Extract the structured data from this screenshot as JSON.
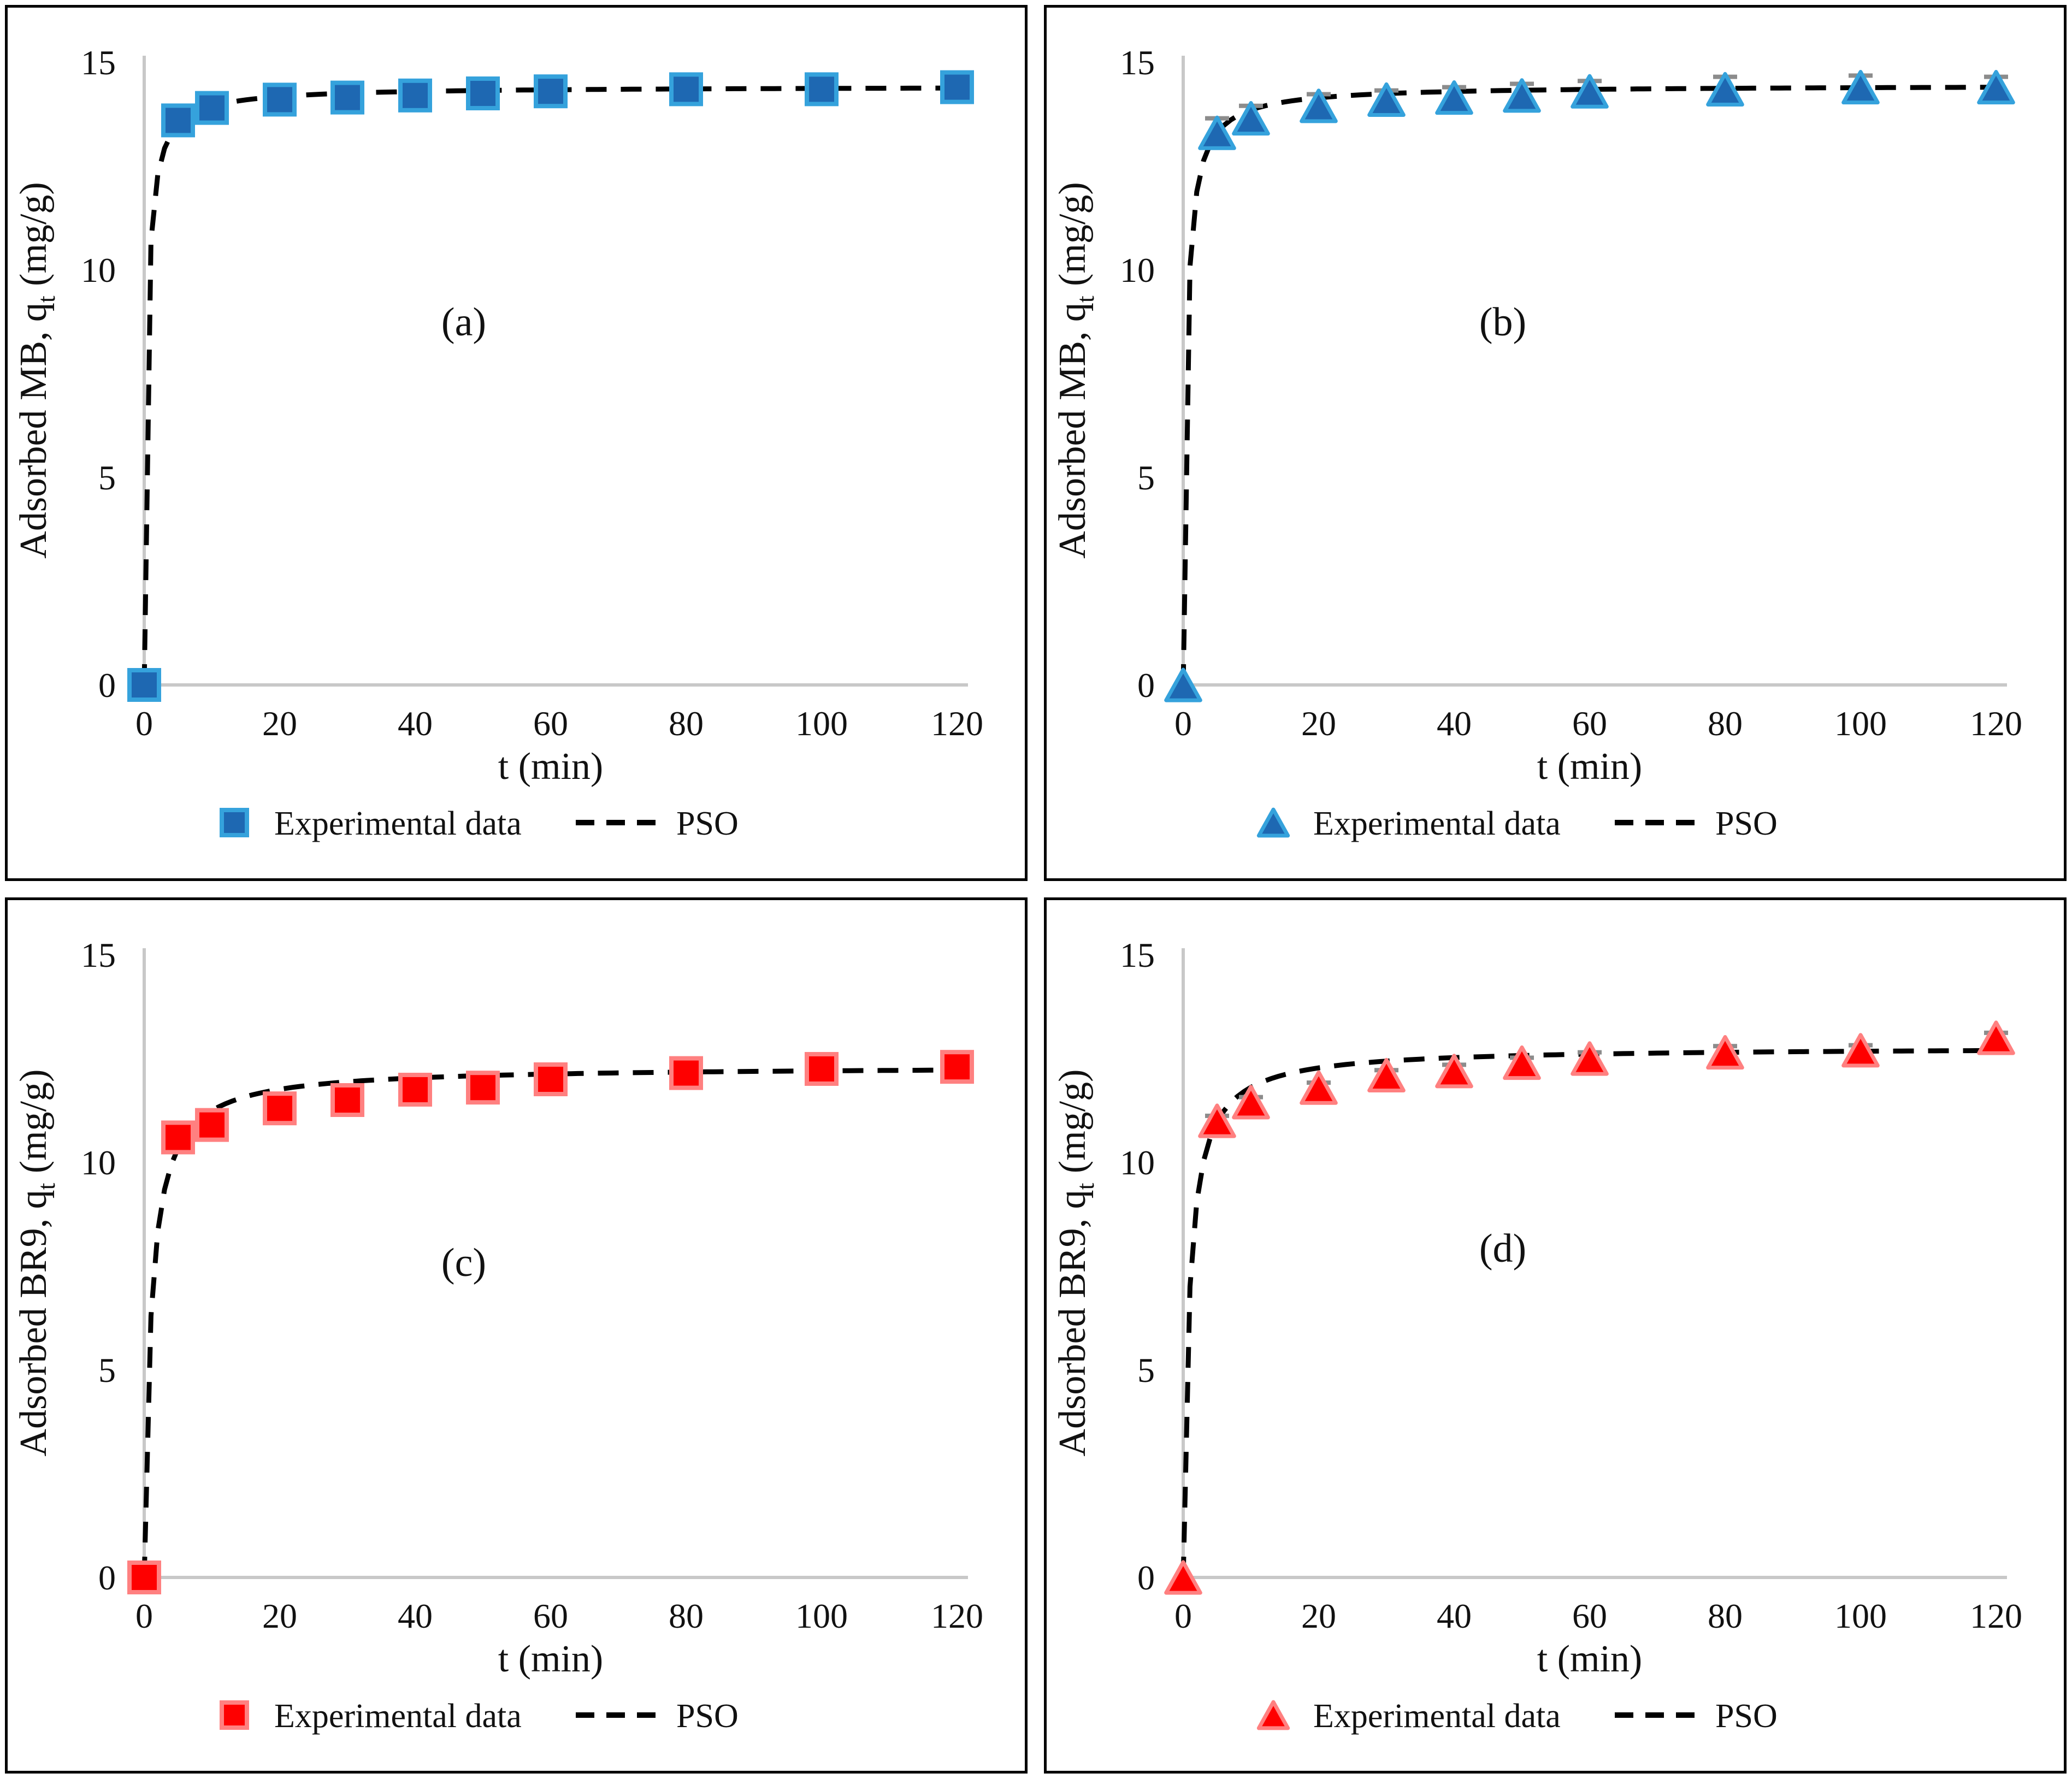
{
  "figure_caption_letters": [
    "(a)",
    "(b)",
    "(c)",
    "(d)"
  ],
  "colors": {
    "axis_line": "#c8c8c8",
    "curve": "#000000",
    "error_bar_line": "#4a4a4a",
    "error_bar_cap": "#8c8c8c",
    "text": "#111111",
    "blue_marker_fill": "#1e68b2",
    "blue_marker_stroke": "#35a2dc",
    "red_marker_fill": "#fe0000",
    "red_marker_stroke": "#ff8080"
  },
  "chart_data": [
    {
      "panel": "a",
      "type": "scatter",
      "annotation": "(a)",
      "xlabel": "t (min)",
      "ylabel_parts": [
        "Adsorbed MB, q",
        "t",
        " (mg/g)"
      ],
      "x": [
        0,
        5,
        10,
        20,
        30,
        40,
        50,
        60,
        80,
        100,
        120
      ],
      "y": [
        0,
        13.6,
        13.9,
        14.1,
        14.15,
        14.2,
        14.25,
        14.3,
        14.35,
        14.35,
        14.4
      ],
      "yerr": null,
      "series_label": "Experimental data",
      "fit_label": "PSO",
      "pso_fit": {
        "qe": 14.42,
        "k": 0.2
      },
      "xticks": [
        0,
        20,
        40,
        60,
        80,
        100,
        120
      ],
      "yticks": [
        0,
        5,
        10,
        15
      ],
      "xlim": [
        0,
        120
      ],
      "ylim": [
        0,
        15
      ],
      "legend_position": "bottom",
      "grid": false,
      "marker": {
        "shape": "square",
        "fill": "#1e68b2",
        "stroke": "#35a2dc"
      }
    },
    {
      "panel": "b",
      "type": "scatter",
      "annotation": "(b)",
      "xlabel": "t (min)",
      "ylabel_parts": [
        "Adsorbed MB, q",
        "t",
        " (mg/g)"
      ],
      "x": [
        0,
        5,
        10,
        20,
        30,
        40,
        50,
        60,
        80,
        100,
        120
      ],
      "y": [
        0,
        13.3,
        13.65,
        13.95,
        14.1,
        14.15,
        14.2,
        14.3,
        14.35,
        14.4,
        14.4
      ],
      "yerr": [
        0,
        0.35,
        0.3,
        0.28,
        0.22,
        0.25,
        0.28,
        0.25,
        0.3,
        0.28,
        0.25
      ],
      "series_label": "Experimental data",
      "fit_label": "PSO",
      "pso_fit": {
        "qe": 14.45,
        "k": 0.16
      },
      "xticks": [
        0,
        20,
        40,
        60,
        80,
        100,
        120
      ],
      "yticks": [
        0,
        5,
        10,
        15
      ],
      "xlim": [
        0,
        120
      ],
      "ylim": [
        0,
        15
      ],
      "legend_position": "bottom",
      "grid": false,
      "marker": {
        "shape": "triangle",
        "fill": "#1e68b2",
        "stroke": "#35a2dc"
      }
    },
    {
      "panel": "c",
      "type": "scatter",
      "annotation": "(c)",
      "xlabel": "t (min)",
      "ylabel_parts": [
        "Adsorbed BR9, q",
        "t",
        " (mg/g)"
      ],
      "x": [
        0,
        5,
        10,
        20,
        30,
        40,
        50,
        60,
        80,
        100,
        120
      ],
      "y": [
        0,
        10.6,
        10.9,
        11.3,
        11.5,
        11.75,
        11.8,
        12.0,
        12.15,
        12.25,
        12.3
      ],
      "yerr": null,
      "series_label": "Experimental data",
      "fit_label": "PSO",
      "pso_fit": {
        "qe": 12.32,
        "k": 0.085
      },
      "xticks": [
        0,
        20,
        40,
        60,
        80,
        100,
        120
      ],
      "yticks": [
        0,
        5,
        10,
        15
      ],
      "xlim": [
        0,
        120
      ],
      "ylim": [
        0,
        15
      ],
      "legend_position": "bottom",
      "grid": false,
      "marker": {
        "shape": "square",
        "fill": "#fe0000",
        "stroke": "#ff8080"
      }
    },
    {
      "panel": "d",
      "type": "scatter",
      "annotation": "(d)",
      "xlabel": "t (min)",
      "ylabel_parts": [
        "Adsorbed BR9, q",
        "t",
        " (mg/g)"
      ],
      "x": [
        0,
        5,
        10,
        20,
        30,
        40,
        50,
        60,
        80,
        100,
        120
      ],
      "y": [
        0,
        11.0,
        11.45,
        11.8,
        12.1,
        12.2,
        12.4,
        12.5,
        12.65,
        12.7,
        13.0
      ],
      "yerr": [
        0,
        0.12,
        0.12,
        0.12,
        0.12,
        0.15,
        0.12,
        0.15,
        0.15,
        0.12,
        0.12
      ],
      "series_label": "Experimental data",
      "fit_label": "PSO",
      "pso_fit": {
        "qe": 12.78,
        "k": 0.095
      },
      "xticks": [
        0,
        20,
        40,
        60,
        80,
        100,
        120
      ],
      "yticks": [
        0,
        5,
        10,
        15
      ],
      "xlim": [
        0,
        120
      ],
      "ylim": [
        0,
        15
      ],
      "legend_position": "bottom",
      "grid": false,
      "marker": {
        "shape": "triangle",
        "fill": "#fe0000",
        "stroke": "#ff8080"
      }
    }
  ]
}
